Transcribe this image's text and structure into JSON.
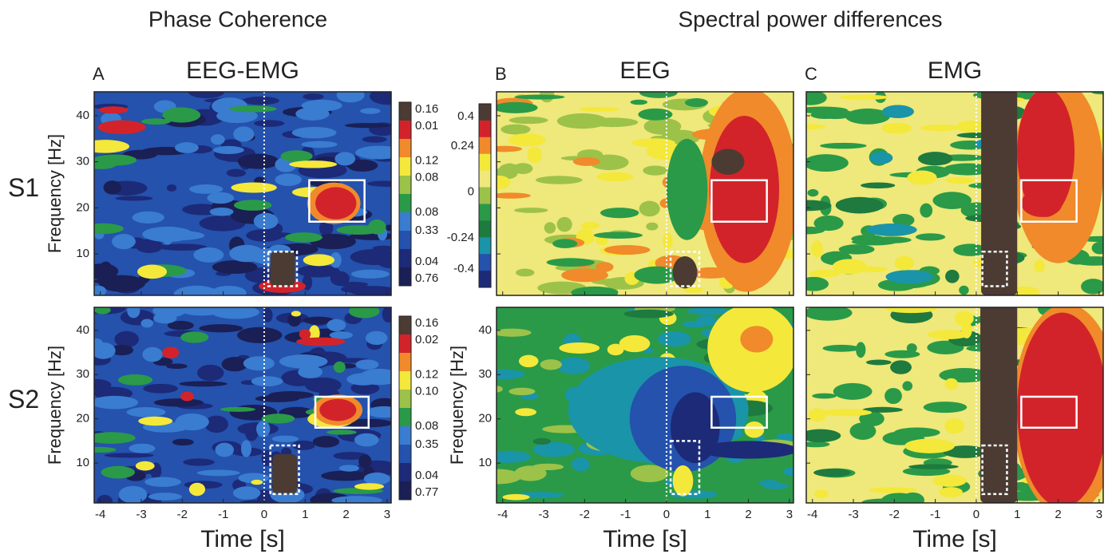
{
  "figure": {
    "titles": [
      "Phase Coherence",
      "Spectral power differences"
    ],
    "panels": [
      {
        "letter": "A",
        "title": "EEG-EMG"
      },
      {
        "letter": "B",
        "title": "EEG"
      },
      {
        "letter": "C",
        "title": "EMG"
      }
    ],
    "rows": [
      "S1",
      "S2"
    ],
    "x_axis": {
      "label": "Time [s]",
      "ticks": [
        -4,
        -3,
        -2,
        -1,
        0,
        1,
        2,
        3
      ],
      "lim": [
        -4.15,
        3.1
      ]
    },
    "y_axis": {
      "label": "Frequency [Hz]",
      "ticks": [
        10,
        20,
        30,
        40
      ],
      "lim": [
        1,
        45.2
      ]
    },
    "colorbars": {
      "coherence_s1": [
        "0.16",
        "0.01",
        "0.12",
        "0.08",
        "0.08",
        "0.33",
        "0.04",
        "0.76"
      ],
      "coherence_s2": [
        "0.16",
        "0.02",
        "0.12",
        "0.10",
        "0.08",
        "0.35",
        "0.04",
        "0.77"
      ],
      "power": [
        "0.4",
        "0.24",
        "0",
        "-0.24",
        "-0.4"
      ]
    }
  }
}
